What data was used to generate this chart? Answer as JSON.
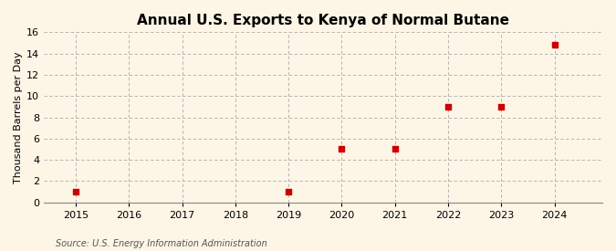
{
  "title": "Annual U.S. Exports to Kenya of Normal Butane",
  "ylabel": "Thousand Barrels per Day",
  "source": "Source: U.S. Energy Information Administration",
  "background_color": "#fdf5e6",
  "plot_bg_color": "#fdf5e6",
  "x_values": [
    2015,
    2019,
    2020,
    2021,
    2022,
    2023,
    2024
  ],
  "y_values": [
    1,
    1,
    5,
    5,
    9,
    9,
    14.8
  ],
  "marker_color": "#cc0000",
  "marker_size": 18,
  "xlim": [
    2014.4,
    2024.9
  ],
  "ylim": [
    0,
    16
  ],
  "yticks": [
    0,
    2,
    4,
    6,
    8,
    10,
    12,
    14,
    16
  ],
  "xticks": [
    2015,
    2016,
    2017,
    2018,
    2019,
    2020,
    2021,
    2022,
    2023,
    2024
  ],
  "title_fontsize": 11,
  "label_fontsize": 8,
  "tick_fontsize": 8,
  "source_fontsize": 7
}
